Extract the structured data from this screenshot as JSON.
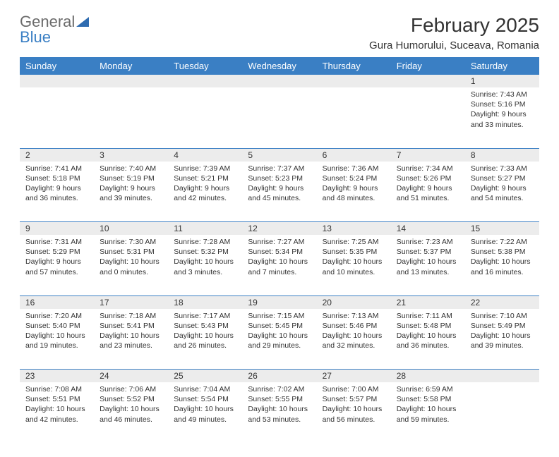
{
  "logo": {
    "text1": "General",
    "text2": "Blue"
  },
  "title": "February 2025",
  "location": "Gura Humorului, Suceava, Romania",
  "colors": {
    "header_bg": "#3a7fc4",
    "header_text": "#ffffff",
    "daynum_bg": "#ececec",
    "border": "#3a7fc4",
    "text": "#333333",
    "logo_gray": "#6b6b6b",
    "logo_blue": "#3a7fc4"
  },
  "weekdays": [
    "Sunday",
    "Monday",
    "Tuesday",
    "Wednesday",
    "Thursday",
    "Friday",
    "Saturday"
  ],
  "weeks": [
    {
      "nums": [
        "",
        "",
        "",
        "",
        "",
        "",
        "1"
      ],
      "cells": [
        null,
        null,
        null,
        null,
        null,
        null,
        {
          "sunrise": "7:43 AM",
          "sunset": "5:16 PM",
          "daylight": "9 hours and 33 minutes."
        }
      ]
    },
    {
      "nums": [
        "2",
        "3",
        "4",
        "5",
        "6",
        "7",
        "8"
      ],
      "cells": [
        {
          "sunrise": "7:41 AM",
          "sunset": "5:18 PM",
          "daylight": "9 hours and 36 minutes."
        },
        {
          "sunrise": "7:40 AM",
          "sunset": "5:19 PM",
          "daylight": "9 hours and 39 minutes."
        },
        {
          "sunrise": "7:39 AM",
          "sunset": "5:21 PM",
          "daylight": "9 hours and 42 minutes."
        },
        {
          "sunrise": "7:37 AM",
          "sunset": "5:23 PM",
          "daylight": "9 hours and 45 minutes."
        },
        {
          "sunrise": "7:36 AM",
          "sunset": "5:24 PM",
          "daylight": "9 hours and 48 minutes."
        },
        {
          "sunrise": "7:34 AM",
          "sunset": "5:26 PM",
          "daylight": "9 hours and 51 minutes."
        },
        {
          "sunrise": "7:33 AM",
          "sunset": "5:27 PM",
          "daylight": "9 hours and 54 minutes."
        }
      ]
    },
    {
      "nums": [
        "9",
        "10",
        "11",
        "12",
        "13",
        "14",
        "15"
      ],
      "cells": [
        {
          "sunrise": "7:31 AM",
          "sunset": "5:29 PM",
          "daylight": "9 hours and 57 minutes."
        },
        {
          "sunrise": "7:30 AM",
          "sunset": "5:31 PM",
          "daylight": "10 hours and 0 minutes."
        },
        {
          "sunrise": "7:28 AM",
          "sunset": "5:32 PM",
          "daylight": "10 hours and 3 minutes."
        },
        {
          "sunrise": "7:27 AM",
          "sunset": "5:34 PM",
          "daylight": "10 hours and 7 minutes."
        },
        {
          "sunrise": "7:25 AM",
          "sunset": "5:35 PM",
          "daylight": "10 hours and 10 minutes."
        },
        {
          "sunrise": "7:23 AM",
          "sunset": "5:37 PM",
          "daylight": "10 hours and 13 minutes."
        },
        {
          "sunrise": "7:22 AM",
          "sunset": "5:38 PM",
          "daylight": "10 hours and 16 minutes."
        }
      ]
    },
    {
      "nums": [
        "16",
        "17",
        "18",
        "19",
        "20",
        "21",
        "22"
      ],
      "cells": [
        {
          "sunrise": "7:20 AM",
          "sunset": "5:40 PM",
          "daylight": "10 hours and 19 minutes."
        },
        {
          "sunrise": "7:18 AM",
          "sunset": "5:41 PM",
          "daylight": "10 hours and 23 minutes."
        },
        {
          "sunrise": "7:17 AM",
          "sunset": "5:43 PM",
          "daylight": "10 hours and 26 minutes."
        },
        {
          "sunrise": "7:15 AM",
          "sunset": "5:45 PM",
          "daylight": "10 hours and 29 minutes."
        },
        {
          "sunrise": "7:13 AM",
          "sunset": "5:46 PM",
          "daylight": "10 hours and 32 minutes."
        },
        {
          "sunrise": "7:11 AM",
          "sunset": "5:48 PM",
          "daylight": "10 hours and 36 minutes."
        },
        {
          "sunrise": "7:10 AM",
          "sunset": "5:49 PM",
          "daylight": "10 hours and 39 minutes."
        }
      ]
    },
    {
      "nums": [
        "23",
        "24",
        "25",
        "26",
        "27",
        "28",
        ""
      ],
      "cells": [
        {
          "sunrise": "7:08 AM",
          "sunset": "5:51 PM",
          "daylight": "10 hours and 42 minutes."
        },
        {
          "sunrise": "7:06 AM",
          "sunset": "5:52 PM",
          "daylight": "10 hours and 46 minutes."
        },
        {
          "sunrise": "7:04 AM",
          "sunset": "5:54 PM",
          "daylight": "10 hours and 49 minutes."
        },
        {
          "sunrise": "7:02 AM",
          "sunset": "5:55 PM",
          "daylight": "10 hours and 53 minutes."
        },
        {
          "sunrise": "7:00 AM",
          "sunset": "5:57 PM",
          "daylight": "10 hours and 56 minutes."
        },
        {
          "sunrise": "6:59 AM",
          "sunset": "5:58 PM",
          "daylight": "10 hours and 59 minutes."
        },
        null
      ]
    }
  ],
  "labels": {
    "sunrise": "Sunrise:",
    "sunset": "Sunset:",
    "daylight": "Daylight:"
  }
}
